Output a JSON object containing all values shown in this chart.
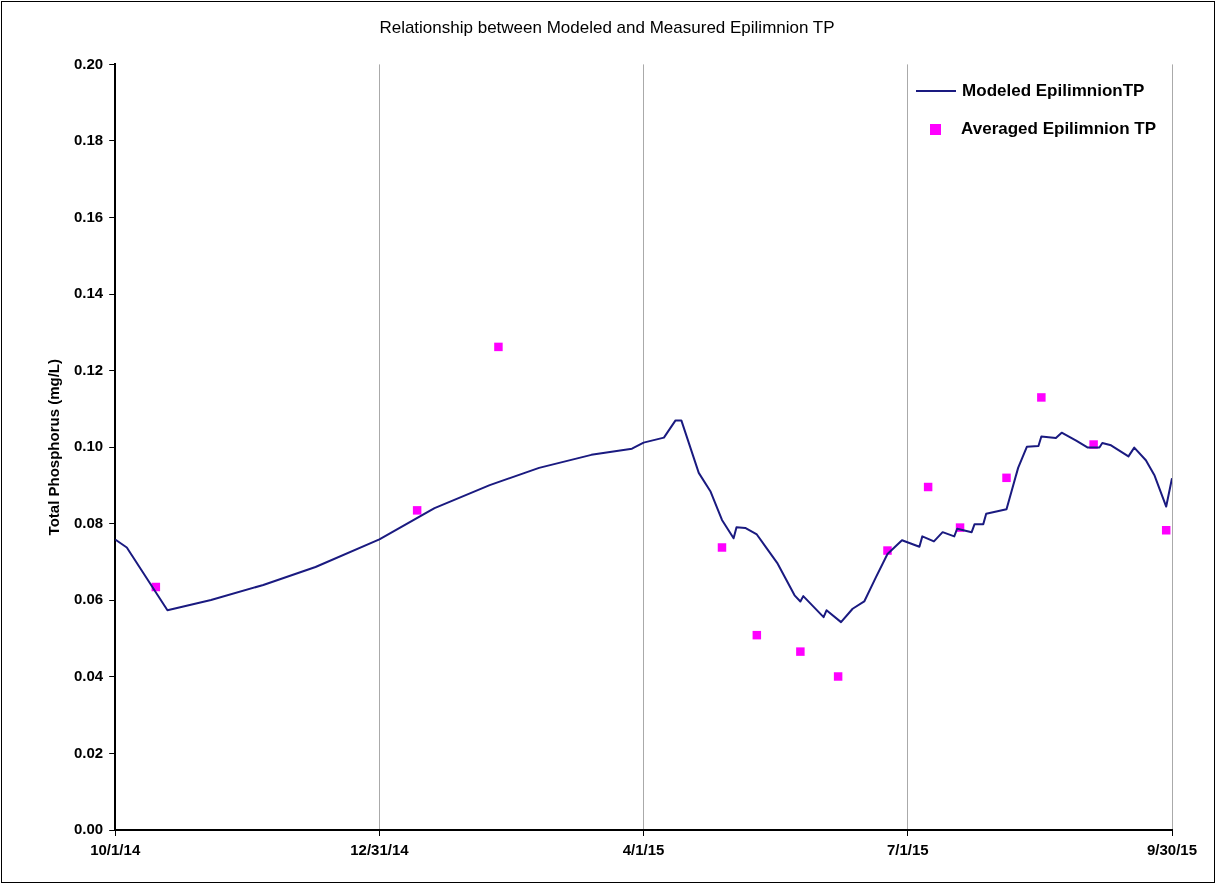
{
  "chart_data": {
    "type": "line",
    "title": "Relationship between Modeled and Measured Epilimnion TP",
    "ylabel": "Total Phosphorus (mg/L)",
    "xlim": [
      "2014-10-01",
      "2015-09-30"
    ],
    "xticks": [
      {
        "value": "2014-10-01",
        "label": "10/1/14"
      },
      {
        "value": "2014-12-31",
        "label": "12/31/14"
      },
      {
        "value": "2015-04-01",
        "label": "4/1/15"
      },
      {
        "value": "2015-07-01",
        "label": "7/1/15"
      },
      {
        "value": "2015-09-30",
        "label": "9/30/15"
      }
    ],
    "ylim": [
      0,
      0.2
    ],
    "yticks": [
      {
        "value": 0,
        "label": "0.00"
      },
      {
        "value": 0.02,
        "label": "0.02"
      },
      {
        "value": 0.04,
        "label": "0.04"
      },
      {
        "value": 0.06,
        "label": "0.06"
      },
      {
        "value": 0.08,
        "label": "0.08"
      },
      {
        "value": 0.1,
        "label": "0.10"
      },
      {
        "value": 0.12,
        "label": "0.12"
      },
      {
        "value": 0.14,
        "label": "0.14"
      },
      {
        "value": 0.16,
        "label": "0.16"
      },
      {
        "value": 0.18,
        "label": "0.18"
      },
      {
        "value": 0.2,
        "label": "0.20"
      }
    ],
    "grid": "x",
    "legend": "top right",
    "series": [
      {
        "name": "Modeled EpilimnionTP",
        "color": "#1a1a80",
        "marker": "none",
        "line_style": "solid",
        "x": [
          "2014-10-01",
          "2014-10-05",
          "2014-10-19",
          "2014-11-03",
          "2014-11-21",
          "2014-12-09",
          "2014-12-31",
          "2015-01-19",
          "2015-02-07",
          "2015-02-24",
          "2015-03-14",
          "2015-03-28",
          "2015-04-01",
          "2015-04-08",
          "2015-04-12",
          "2015-04-14",
          "2015-04-20",
          "2015-04-24",
          "2015-04-28",
          "2015-05-02",
          "2015-05-03",
          "2015-05-06",
          "2015-05-10",
          "2015-05-17",
          "2015-05-23",
          "2015-05-25",
          "2015-05-26",
          "2015-06-02",
          "2015-06-03",
          "2015-06-08",
          "2015-06-12",
          "2015-06-16",
          "2015-06-20",
          "2015-06-24",
          "2015-06-29",
          "2015-07-05",
          "2015-07-06",
          "2015-07-10",
          "2015-07-13",
          "2015-07-17",
          "2015-07-18",
          "2015-07-23",
          "2015-07-24",
          "2015-07-27",
          "2015-07-28",
          "2015-08-04",
          "2015-08-08",
          "2015-08-11",
          "2015-08-15",
          "2015-08-16",
          "2015-08-21",
          "2015-08-23",
          "2015-08-28",
          "2015-09-01",
          "2015-09-05",
          "2015-09-06",
          "2015-09-09",
          "2015-09-15",
          "2015-09-17",
          "2015-09-21",
          "2015-09-24",
          "2015-09-28",
          "2015-09-30"
        ],
        "values": [
          0.0759,
          0.0738,
          0.0574,
          0.0601,
          0.064,
          0.0687,
          0.0759,
          0.0841,
          0.0901,
          0.0946,
          0.098,
          0.0996,
          0.1012,
          0.1025,
          0.107,
          0.107,
          0.0933,
          0.0885,
          0.081,
          0.0762,
          0.0791,
          0.0789,
          0.0772,
          0.0698,
          0.0613,
          0.0597,
          0.0611,
          0.0556,
          0.0574,
          0.0543,
          0.0578,
          0.0597,
          0.066,
          0.0721,
          0.0757,
          0.074,
          0.0767,
          0.0754,
          0.0778,
          0.0767,
          0.0787,
          0.0778,
          0.0799,
          0.0799,
          0.0826,
          0.0838,
          0.0946,
          0.1001,
          0.1003,
          0.1028,
          0.1024,
          0.1038,
          0.1017,
          0.0999,
          0.0999,
          0.1011,
          0.1005,
          0.0976,
          0.0999,
          0.0966,
          0.0926,
          0.0845,
          0.0919
        ]
      },
      {
        "name": "Averaged Epilimnion TP",
        "type": "scatter",
        "color": "#ff00ff",
        "marker": "square",
        "x": [
          "2014-10-15",
          "2015-01-13",
          "2015-02-10",
          "2015-04-28",
          "2015-05-10",
          "2015-05-25",
          "2015-06-07",
          "2015-06-24",
          "2015-07-08",
          "2015-07-19",
          "2015-08-04",
          "2015-08-16",
          "2015-09-03",
          "2015-09-28"
        ],
        "values": [
          0.0635,
          0.0835,
          0.1262,
          0.0738,
          0.0509,
          0.0466,
          0.0401,
          0.073,
          0.0896,
          0.079,
          0.092,
          0.113,
          0.1007,
          0.0783
        ]
      }
    ]
  }
}
